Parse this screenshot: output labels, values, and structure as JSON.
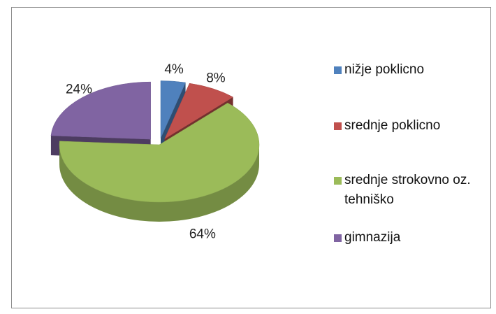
{
  "chart_data": {
    "type": "pie",
    "categories": [
      "nižje poklicno",
      "srednje poklicno",
      "srednje strokovno oz. tehniško",
      "gimnazija"
    ],
    "values": [
      4,
      8,
      64,
      24
    ],
    "value_labels": [
      "4%",
      "8%",
      "64%",
      "24%"
    ],
    "colors": [
      "#4f81bd",
      "#c0504d",
      "#9bbb59",
      "#8064a2"
    ],
    "legend": "right"
  }
}
